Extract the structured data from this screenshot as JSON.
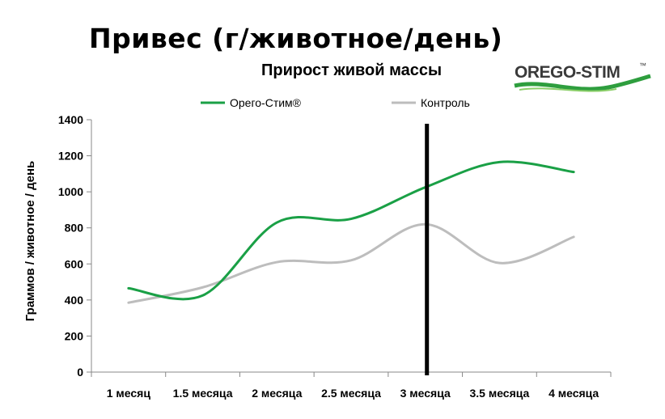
{
  "header": {
    "main_title": "Привес (г/животное/день)",
    "logo_text": "OREGO-STIM",
    "logo_tm": "™"
  },
  "colors": {
    "orego": "#1aa046",
    "control": "#bdbdbd",
    "marker": "#000000",
    "logo_swoosh": "#2e9e3e"
  },
  "chart_data": {
    "type": "line",
    "title": "Прирост живой массы",
    "xlabel": "",
    "ylabel": "Граммов / животное / день",
    "categories": [
      "1 месяц",
      "1.5 месяца",
      "2 месяца",
      "2.5 месяца",
      "3 месяца",
      "3.5 месяца",
      "4 месяца"
    ],
    "series": [
      {
        "name": "Орего-Стим®",
        "color": "#1aa046",
        "values": [
          465,
          425,
          830,
          850,
          1025,
          1165,
          1110
        ]
      },
      {
        "name": "Контроль",
        "color": "#bdbdbd",
        "values": [
          385,
          470,
          610,
          620,
          820,
          605,
          750
        ]
      }
    ],
    "ylim": [
      0,
      1400
    ],
    "yticks": [
      0,
      200,
      400,
      600,
      800,
      1000,
      1200,
      1400
    ],
    "grid": false,
    "legend": "top",
    "vertical_marker_at": "3 месяца"
  }
}
